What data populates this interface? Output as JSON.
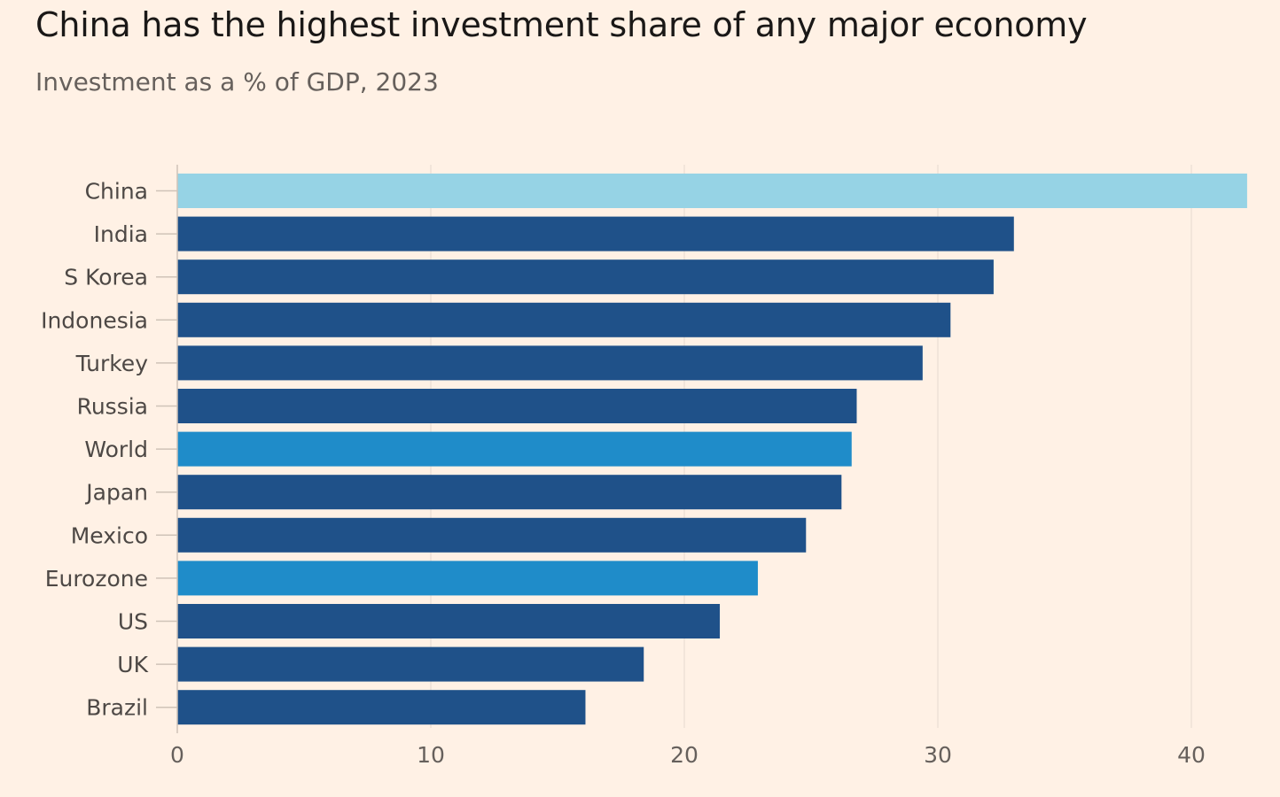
{
  "title": "China has the highest investment share of any major economy",
  "subtitle": "Investment as a % of GDP, 2023",
  "colors": {
    "background": "#fff1e5",
    "country": "#1f5189",
    "china": "#96d3e5",
    "aggregate": "#1f8cc9",
    "gridline": "#e6d9ce",
    "tick": "#cfc3b8"
  },
  "chart_data": {
    "type": "bar",
    "orientation": "horizontal",
    "title": "China has the highest investment share of any major economy",
    "subtitle": "Investment as a % of GDP, 2023",
    "categories": [
      "China",
      "India",
      "S Korea",
      "Indonesia",
      "Turkey",
      "Russia",
      "World",
      "Japan",
      "Mexico",
      "Eurozone",
      "US",
      "UK",
      "Brazil"
    ],
    "values": [
      42.2,
      33.0,
      32.2,
      30.5,
      29.4,
      26.8,
      26.6,
      26.2,
      24.8,
      22.9,
      21.4,
      18.4,
      16.1
    ],
    "bar_color_keys": [
      "china",
      "country",
      "country",
      "country",
      "country",
      "country",
      "aggregate",
      "country",
      "country",
      "aggregate",
      "country",
      "country",
      "country"
    ],
    "xticks": [
      0,
      10,
      20,
      30,
      40
    ],
    "xlim": [
      0,
      42.2
    ],
    "grid": true
  }
}
